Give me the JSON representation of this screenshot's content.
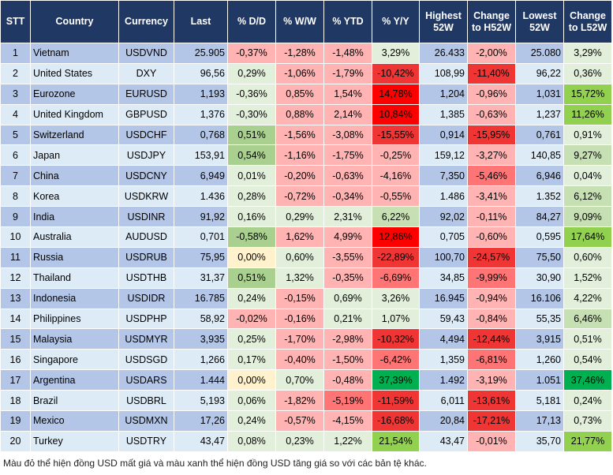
{
  "palette": {
    "lr": "#ffb3b3",
    "rm": "#ff7575",
    "r2": "#f03535",
    "r3": "#ff0000",
    "pg": "#e2efda",
    "g1": "#c6e0b4",
    "g2": "#a9d08e",
    "g3": "#92d050",
    "dg": "#00b050",
    "y": "#fff2cc"
  },
  "header": {
    "header_bg": "#203864",
    "columns": [
      "STT",
      "Country",
      "Currency",
      "Last",
      "% D/D",
      "% W/W",
      "% YTD",
      "% Y/Y",
      "Highest 52W",
      "Change to H52W",
      "Lowest 52W",
      "Change to L52W"
    ]
  },
  "rows": [
    {
      "stt": "1",
      "country": "Vietnam",
      "currency": "USDVND",
      "last": "25.905",
      "dd": "-0,37%",
      "ww": "-1,28%",
      "ytd": "-1,48%",
      "yy": "3,29%",
      "high": "26.433",
      "chh": "-2,00%",
      "low": "25.080",
      "chl": "3,29%",
      "colors": [
        "lr",
        "lr",
        "lr",
        "pg",
        "lr",
        "pg"
      ]
    },
    {
      "stt": "2",
      "country": "United States",
      "currency": "DXY",
      "last": "96,56",
      "dd": "0,29%",
      "ww": "-1,06%",
      "ytd": "-1,79%",
      "yy": "-10,42%",
      "high": "108,99",
      "chh": "-11,40%",
      "low": "96,22",
      "chl": "0,36%",
      "colors": [
        "pg",
        "lr",
        "lr",
        "r2",
        "r2",
        "pg"
      ]
    },
    {
      "stt": "3",
      "country": "Eurozone",
      "currency": "EURUSD",
      "last": "1,193",
      "dd": "-0,36%",
      "ww": "0,85%",
      "ytd": "1,54%",
      "yy": "14,78%",
      "high": "1,204",
      "chh": "-0,96%",
      "low": "1,031",
      "chl": "15,72%",
      "colors": [
        "pg",
        "lr",
        "lr",
        "r3",
        "lr",
        "g3"
      ]
    },
    {
      "stt": "4",
      "country": "United Kingdom",
      "currency": "GBPUSD",
      "last": "1,376",
      "dd": "-0,30%",
      "ww": "0,88%",
      "ytd": "2,14%",
      "yy": "10,84%",
      "high": "1,385",
      "chh": "-0,63%",
      "low": "1,237",
      "chl": "11,26%",
      "colors": [
        "pg",
        "lr",
        "lr",
        "r3",
        "lr",
        "g3"
      ]
    },
    {
      "stt": "5",
      "country": "Switzerland",
      "currency": "USDCHF",
      "last": "0,768",
      "dd": "0,51%",
      "ww": "-1,56%",
      "ytd": "-3,08%",
      "yy": "-15,55%",
      "high": "0,914",
      "chh": "-15,95%",
      "low": "0,761",
      "chl": "0,91%",
      "colors": [
        "g2",
        "lr",
        "lr",
        "r2",
        "r2",
        "pg"
      ]
    },
    {
      "stt": "6",
      "country": "Japan",
      "currency": "USDJPY",
      "last": "153,91",
      "dd": "0,54%",
      "ww": "-1,16%",
      "ytd": "-1,75%",
      "yy": "-0,25%",
      "high": "159,12",
      "chh": "-3,27%",
      "low": "140,85",
      "chl": "9,27%",
      "colors": [
        "g2",
        "lr",
        "lr",
        "lr",
        "lr",
        "g1"
      ]
    },
    {
      "stt": "7",
      "country": "China",
      "currency": "USDCNY",
      "last": "6,949",
      "dd": "0,01%",
      "ww": "-0,20%",
      "ytd": "-0,63%",
      "yy": "-4,16%",
      "high": "7,350",
      "chh": "-5,46%",
      "low": "6,946",
      "chl": "0,04%",
      "colors": [
        "pg",
        "lr",
        "lr",
        "lr",
        "rm",
        "pg"
      ]
    },
    {
      "stt": "8",
      "country": "Korea",
      "currency": "USDKRW",
      "last": "1.436",
      "dd": "0,28%",
      "ww": "-0,72%",
      "ytd": "-0,34%",
      "yy": "-0,55%",
      "high": "1.486",
      "chh": "-3,41%",
      "low": "1.352",
      "chl": "6,12%",
      "colors": [
        "pg",
        "lr",
        "lr",
        "lr",
        "lr",
        "g1"
      ]
    },
    {
      "stt": "9",
      "country": "India",
      "currency": "USDINR",
      "last": "91,92",
      "dd": "0,16%",
      "ww": "0,29%",
      "ytd": "2,31%",
      "yy": "6,22%",
      "high": "92,02",
      "chh": "-0,11%",
      "low": "84,27",
      "chl": "9,09%",
      "colors": [
        "pg",
        "pg",
        "pg",
        "g1",
        "lr",
        "g1"
      ]
    },
    {
      "stt": "10",
      "country": "Australia",
      "currency": "AUDUSD",
      "last": "0,701",
      "dd": "-0,58%",
      "ww": "1,62%",
      "ytd": "4,99%",
      "yy": "12,86%",
      "high": "0,705",
      "chh": "-0,60%",
      "low": "0,595",
      "chl": "17,64%",
      "colors": [
        "g2",
        "lr",
        "lr",
        "r3",
        "lr",
        "g3"
      ]
    },
    {
      "stt": "11",
      "country": "Russia",
      "currency": "USDRUB",
      "last": "75,95",
      "dd": "0,00%",
      "ww": "0,60%",
      "ytd": "-3,55%",
      "yy": "-22,89%",
      "high": "100,70",
      "chh": "-24,57%",
      "low": "75,50",
      "chl": "0,60%",
      "colors": [
        "y",
        "pg",
        "lr",
        "r2",
        "r2",
        "pg"
      ]
    },
    {
      "stt": "12",
      "country": "Thailand",
      "currency": "USDTHB",
      "last": "31,37",
      "dd": "0,51%",
      "ww": "1,32%",
      "ytd": "-0,35%",
      "yy": "-6,69%",
      "high": "34,85",
      "chh": "-9,99%",
      "low": "30,90",
      "chl": "1,52%",
      "colors": [
        "g2",
        "pg",
        "lr",
        "rm",
        "rm",
        "pg"
      ]
    },
    {
      "stt": "13",
      "country": "Indonesia",
      "currency": "USDIDR",
      "last": "16.785",
      "dd": "0,24%",
      "ww": "-0,15%",
      "ytd": "0,69%",
      "yy": "3,26%",
      "high": "16.945",
      "chh": "-0,94%",
      "low": "16.106",
      "chl": "4,22%",
      "colors": [
        "pg",
        "lr",
        "pg",
        "pg",
        "lr",
        "pg"
      ]
    },
    {
      "stt": "14",
      "country": "Philippines",
      "currency": "USDPHP",
      "last": "58,92",
      "dd": "-0,02%",
      "ww": "-0,16%",
      "ytd": "0,21%",
      "yy": "1,07%",
      "high": "59,43",
      "chh": "-0,84%",
      "low": "55,35",
      "chl": "6,46%",
      "colors": [
        "lr",
        "lr",
        "pg",
        "pg",
        "lr",
        "g1"
      ]
    },
    {
      "stt": "15",
      "country": "Malaysia",
      "currency": "USDMYR",
      "last": "3,935",
      "dd": "0,25%",
      "ww": "-1,70%",
      "ytd": "-2,98%",
      "yy": "-10,32%",
      "high": "4,494",
      "chh": "-12,44%",
      "low": "3,915",
      "chl": "0,51%",
      "colors": [
        "pg",
        "lr",
        "lr",
        "r2",
        "r2",
        "pg"
      ]
    },
    {
      "stt": "16",
      "country": "Singapore",
      "currency": "USDSGD",
      "last": "1,266",
      "dd": "0,17%",
      "ww": "-0,40%",
      "ytd": "-1,50%",
      "yy": "-6,42%",
      "high": "1,359",
      "chh": "-6,81%",
      "low": "1,260",
      "chl": "0,54%",
      "colors": [
        "pg",
        "lr",
        "lr",
        "rm",
        "rm",
        "pg"
      ]
    },
    {
      "stt": "17",
      "country": "Argentina",
      "currency": "USDARS",
      "last": "1.444",
      "dd": "0,00%",
      "ww": "0,70%",
      "ytd": "-0,48%",
      "yy": "37,39%",
      "high": "1.492",
      "chh": "-3,19%",
      "low": "1.051",
      "chl": "37,46%",
      "colors": [
        "y",
        "pg",
        "lr",
        "dg",
        "lr",
        "dg"
      ]
    },
    {
      "stt": "18",
      "country": "Brazil",
      "currency": "USDBRL",
      "last": "5,193",
      "dd": "0,06%",
      "ww": "-1,82%",
      "ytd": "-5,19%",
      "yy": "-11,59%",
      "high": "6,011",
      "chh": "-13,61%",
      "low": "5,181",
      "chl": "0,24%",
      "colors": [
        "pg",
        "lr",
        "rm",
        "r2",
        "r2",
        "pg"
      ]
    },
    {
      "stt": "19",
      "country": "Mexico",
      "currency": "USDMXN",
      "last": "17,26",
      "dd": "0,24%",
      "ww": "-0,57%",
      "ytd": "-4,15%",
      "yy": "-16,68%",
      "high": "20,84",
      "chh": "-17,21%",
      "low": "17,13",
      "chl": "0,73%",
      "colors": [
        "pg",
        "lr",
        "lr",
        "r2",
        "r2",
        "pg"
      ]
    },
    {
      "stt": "20",
      "country": "Turkey",
      "currency": "USDTRY",
      "last": "43,47",
      "dd": "0,08%",
      "ww": "0,23%",
      "ytd": "1,22%",
      "yy": "21,54%",
      "high": "43,47",
      "chh": "-0,01%",
      "low": "35,70",
      "chl": "21,77%",
      "colors": [
        "pg",
        "pg",
        "pg",
        "g3",
        "lr",
        "g3"
      ]
    }
  ],
  "footnote": "Màu đỏ thể hiện đồng USD mất giá và màu xanh thể hiện đồng USD tăng giá so với các bản tệ khác."
}
